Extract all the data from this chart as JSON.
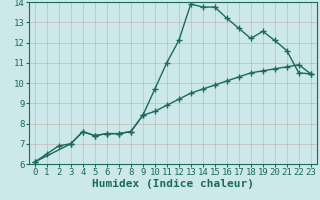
{
  "xlabel": "Humidex (Indice chaleur)",
  "ylabel": "",
  "background_color": "#cce8e8",
  "grid_color": "#c8b8b8",
  "line_color": "#1a6b5a",
  "xlim": [
    -0.5,
    23.5
  ],
  "ylim": [
    6,
    14
  ],
  "xticks": [
    0,
    1,
    2,
    3,
    4,
    5,
    6,
    7,
    8,
    9,
    10,
    11,
    12,
    13,
    14,
    15,
    16,
    17,
    18,
    19,
    20,
    21,
    22,
    23
  ],
  "yticks": [
    6,
    7,
    8,
    9,
    10,
    11,
    12,
    13,
    14
  ],
  "curve1_x": [
    0,
    1,
    2,
    3,
    4,
    5,
    6,
    7,
    8,
    9,
    10,
    11,
    12,
    13,
    14,
    15,
    16,
    17,
    18,
    19,
    20,
    21,
    22,
    23
  ],
  "curve1_y": [
    6.1,
    6.5,
    6.9,
    7.0,
    7.6,
    7.4,
    7.5,
    7.5,
    7.6,
    8.4,
    9.7,
    11.0,
    12.1,
    13.9,
    13.75,
    13.75,
    13.2,
    12.7,
    12.2,
    12.55,
    12.1,
    11.6,
    10.5,
    10.45
  ],
  "curve2_x": [
    0,
    3,
    4,
    5,
    6,
    7,
    8,
    9,
    10,
    11,
    12,
    13,
    14,
    15,
    16,
    17,
    18,
    19,
    20,
    21,
    22,
    23
  ],
  "curve2_y": [
    6.1,
    7.0,
    7.6,
    7.4,
    7.5,
    7.5,
    7.6,
    8.4,
    8.6,
    8.9,
    9.2,
    9.5,
    9.7,
    9.9,
    10.1,
    10.3,
    10.5,
    10.6,
    10.7,
    10.8,
    10.9,
    10.45
  ],
  "marker": "+",
  "markersize": 4,
  "linewidth": 1.0,
  "xlabel_fontsize": 8,
  "tick_fontsize": 6.5
}
